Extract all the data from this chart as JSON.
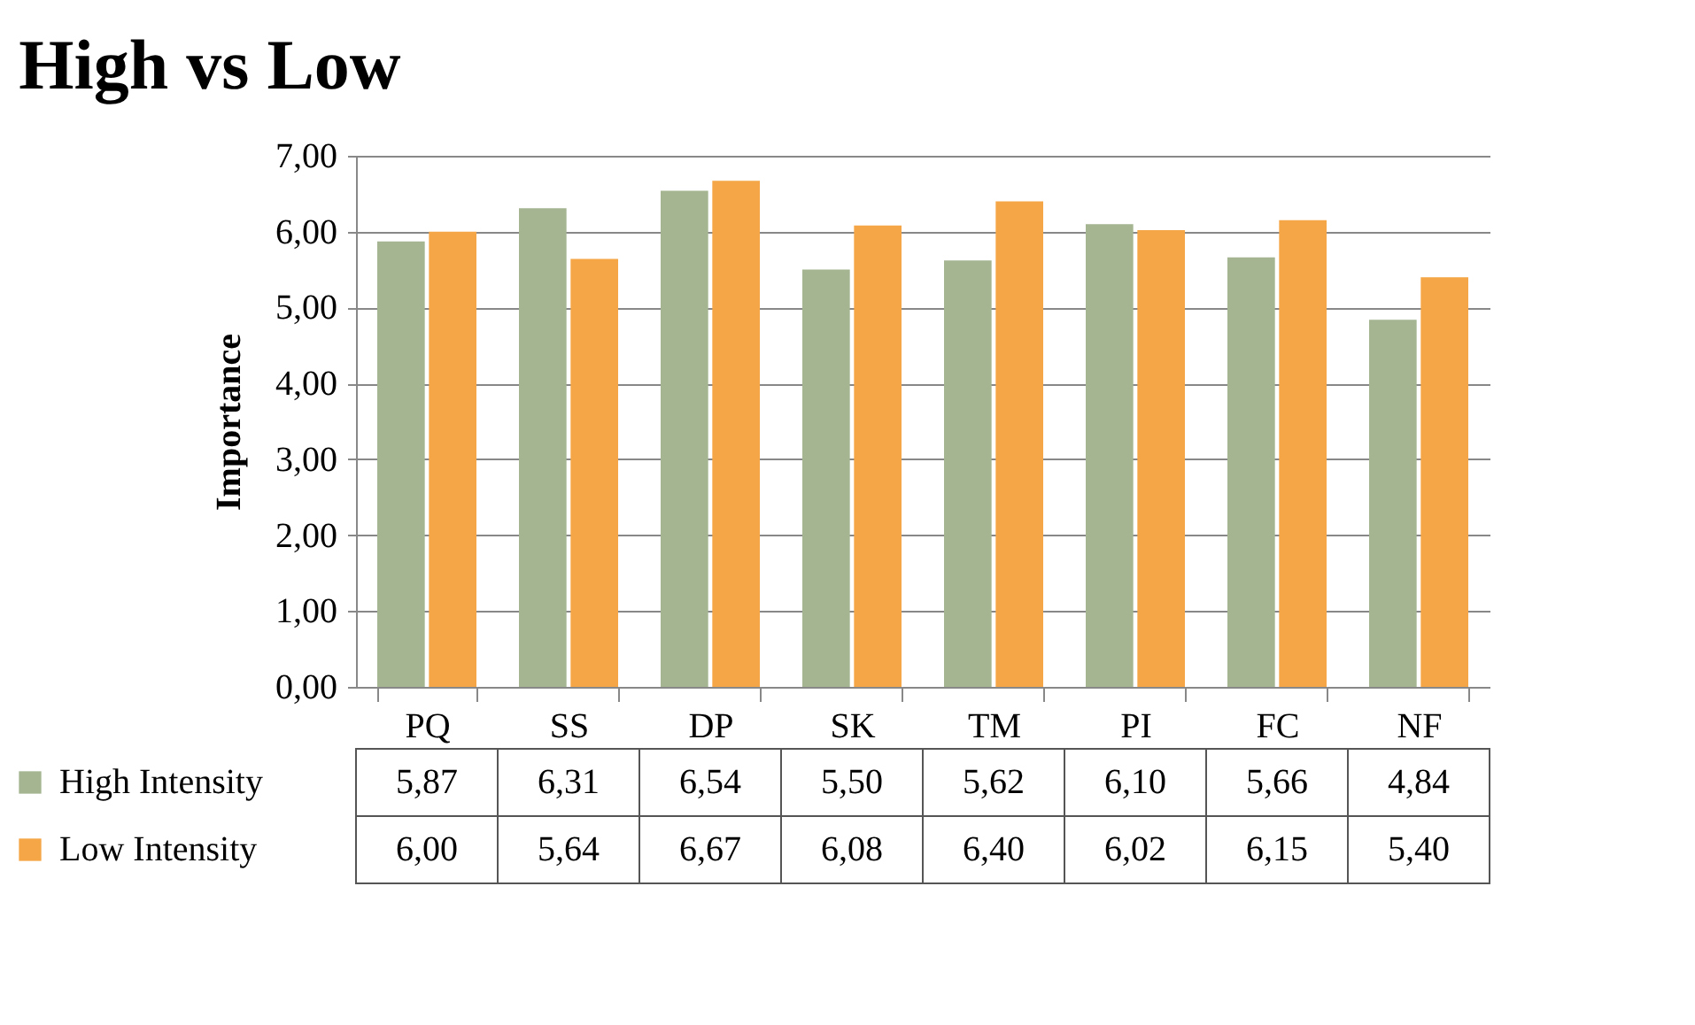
{
  "chart_data": {
    "type": "bar",
    "title": "High vs Low",
    "ylabel": "Importance",
    "categories": [
      "PQ",
      "SS",
      "DP",
      "SK",
      "TM",
      "PI",
      "FC",
      "NF"
    ],
    "series": [
      {
        "name": "High Intensity",
        "color": "#a5b592",
        "values": [
          5.87,
          6.31,
          6.54,
          5.5,
          5.62,
          6.1,
          5.66,
          4.84
        ],
        "value_labels": [
          "5,87",
          "6,31",
          "6,54",
          "5,50",
          "5,62",
          "6,10",
          "5,66",
          "4,84"
        ]
      },
      {
        "name": "Low Intensity",
        "color": "#f5a646",
        "values": [
          6.0,
          5.64,
          6.67,
          6.08,
          6.4,
          6.02,
          6.15,
          5.4
        ],
        "value_labels": [
          "6,00",
          "5,64",
          "6,67",
          "6,08",
          "6,40",
          "6,02",
          "6,15",
          "5,40"
        ]
      }
    ],
    "ylim": [
      0,
      7
    ],
    "yticks": [
      {
        "value": 0,
        "label": "0,00"
      },
      {
        "value": 1,
        "label": "1,00"
      },
      {
        "value": 2,
        "label": "2,00"
      },
      {
        "value": 3,
        "label": "3,00"
      },
      {
        "value": 4,
        "label": "4,00"
      },
      {
        "value": 5,
        "label": "5,00"
      },
      {
        "value": 6,
        "label": "6,00"
      },
      {
        "value": 7,
        "label": "7,00"
      }
    ],
    "grid": "y",
    "legend": "bottom left"
  }
}
